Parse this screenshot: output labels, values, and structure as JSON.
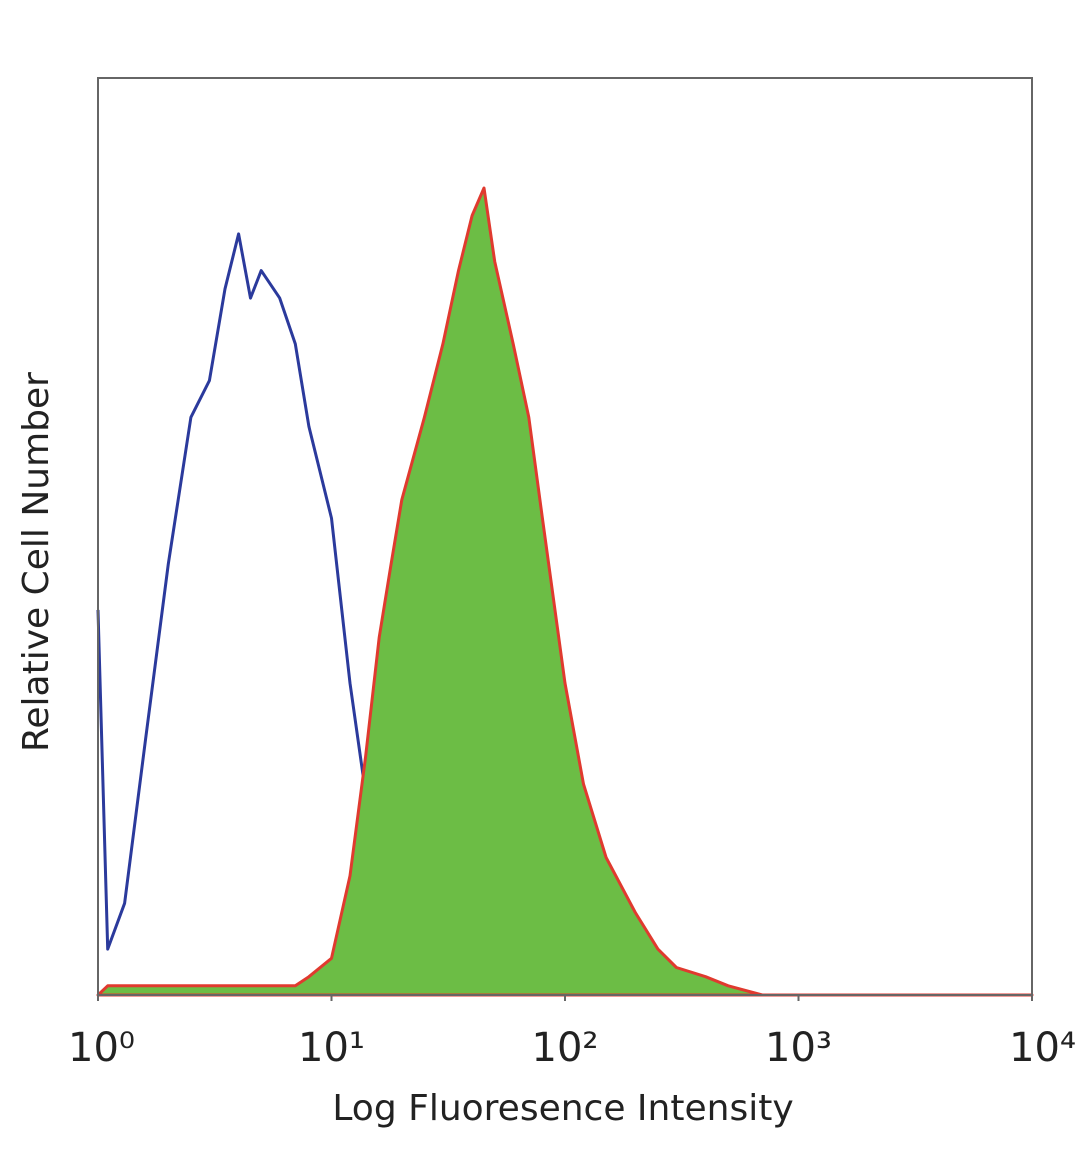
{
  "chart_data": {
    "type": "histogram-line",
    "xlabel": "Log Fluoresence Intensity",
    "ylabel": "Relative Cell Number",
    "xscale": "log",
    "xlim": [
      1,
      10000
    ],
    "xticks": [
      {
        "value": 1,
        "label": "10⁰"
      },
      {
        "value": 10,
        "label": "10¹"
      },
      {
        "value": 100,
        "label": "10²"
      },
      {
        "value": 1000,
        "label": "10³"
      },
      {
        "value": 10000,
        "label": "10⁴"
      }
    ],
    "ylim": [
      0,
      100
    ],
    "x": [
      1,
      1.1,
      1.3,
      1.6,
      2,
      2.5,
      3,
      3.5,
      4,
      4.5,
      5,
      6,
      7,
      8,
      10,
      12,
      14,
      16,
      18,
      20,
      25,
      30,
      35,
      40,
      45,
      50,
      60,
      70,
      80,
      100,
      120,
      150,
      200,
      250,
      300,
      400,
      500,
      700,
      1000,
      10000
    ],
    "series": [
      {
        "color": "#2b3a9c",
        "fill": false,
        "values": [
          42,
          5,
          10,
          28,
          47,
          63,
          67,
          77,
          83,
          76,
          79,
          76,
          71,
          62,
          52,
          34,
          22,
          15,
          11,
          9,
          7,
          4,
          3,
          2,
          2,
          1,
          0,
          0,
          0,
          0,
          0,
          0,
          0,
          0,
          0,
          0,
          0,
          0,
          0,
          0
        ]
      },
      {
        "color": "#6cbd45",
        "stroke": "#e03a2f",
        "fill": true,
        "values": [
          0,
          1,
          1,
          1,
          1,
          1,
          1,
          1,
          1,
          1,
          1,
          1,
          1,
          2,
          4,
          13,
          26,
          39,
          47,
          54,
          63,
          71,
          79,
          85,
          88,
          80,
          71,
          63,
          52,
          34,
          23,
          15,
          9,
          5,
          3,
          2,
          1,
          0,
          0,
          0
        ]
      }
    ]
  }
}
